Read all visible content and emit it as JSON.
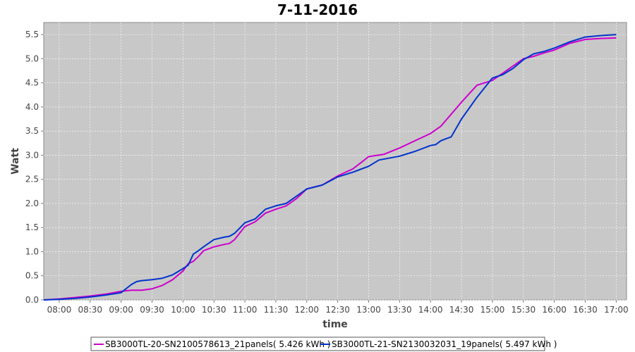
{
  "chart_data": {
    "type": "line",
    "title": "7-11-2016",
    "xlabel": "time",
    "ylabel": "Watt",
    "x_ticks": [
      "08:00",
      "08:30",
      "09:00",
      "09:30",
      "10:00",
      "10:30",
      "11:00",
      "11:30",
      "12:00",
      "12:30",
      "13:00",
      "13:30",
      "14:00",
      "14:30",
      "15:00",
      "15:30",
      "16:00",
      "16:30",
      "17:00"
    ],
    "y_ticks": [
      "0.0",
      "0.5",
      "1.0",
      "1.5",
      "2.0",
      "2.5",
      "3.0",
      "3.5",
      "4.0",
      "4.5",
      "5.0",
      "5.5"
    ],
    "xlim": [
      "07:45",
      "17:10"
    ],
    "ylim": [
      0,
      5.75
    ],
    "grid": true,
    "background": "#c8c8c8",
    "legend_position": "bottom",
    "series": [
      {
        "name": "SB3000TL-20-SN2100578613_21panels( 5.426 kWh )",
        "color": "#cc00cc",
        "x": [
          "07:45",
          "08:00",
          "08:15",
          "08:30",
          "08:45",
          "09:00",
          "09:10",
          "09:20",
          "09:30",
          "09:40",
          "09:50",
          "10:00",
          "10:05",
          "10:10",
          "10:15",
          "10:20",
          "10:30",
          "10:40",
          "10:45",
          "10:50",
          "11:00",
          "11:10",
          "11:20",
          "11:30",
          "11:40",
          "11:50",
          "12:00",
          "12:15",
          "12:30",
          "12:45",
          "13:00",
          "13:15",
          "13:30",
          "13:45",
          "14:00",
          "14:10",
          "14:20",
          "14:30",
          "14:45",
          "15:00",
          "15:10",
          "15:20",
          "15:30",
          "15:40",
          "15:50",
          "16:00",
          "16:15",
          "16:30",
          "16:45",
          "17:00"
        ],
        "y": [
          0.0,
          0.02,
          0.05,
          0.08,
          0.12,
          0.18,
          0.2,
          0.2,
          0.23,
          0.3,
          0.42,
          0.6,
          0.75,
          0.8,
          0.9,
          1.02,
          1.1,
          1.15,
          1.17,
          1.25,
          1.52,
          1.62,
          1.8,
          1.88,
          1.95,
          2.1,
          2.3,
          2.38,
          2.57,
          2.72,
          2.97,
          3.02,
          3.15,
          3.3,
          3.45,
          3.6,
          3.85,
          4.1,
          4.45,
          4.55,
          4.7,
          4.85,
          5.0,
          5.05,
          5.12,
          5.18,
          5.32,
          5.4,
          5.42,
          5.43
        ]
      },
      {
        "name": "SB3000TL-21-SN2130032031_19panels( 5.497 kWh )",
        "color": "#0033cc",
        "x": [
          "07:45",
          "08:00",
          "08:15",
          "08:30",
          "08:45",
          "09:00",
          "09:10",
          "09:15",
          "09:20",
          "09:30",
          "09:40",
          "09:50",
          "10:00",
          "10:05",
          "10:10",
          "10:15",
          "10:20",
          "10:30",
          "10:40",
          "10:45",
          "10:50",
          "11:00",
          "11:10",
          "11:20",
          "11:30",
          "11:40",
          "11:50",
          "12:00",
          "12:15",
          "12:30",
          "12:45",
          "13:00",
          "13:10",
          "13:30",
          "13:45",
          "14:00",
          "14:05",
          "14:10",
          "14:15",
          "14:20",
          "14:30",
          "14:45",
          "15:00",
          "15:10",
          "15:20",
          "15:30",
          "15:40",
          "15:50",
          "16:00",
          "16:15",
          "16:30",
          "16:45",
          "17:00"
        ],
        "y": [
          0.0,
          0.01,
          0.03,
          0.06,
          0.1,
          0.15,
          0.32,
          0.38,
          0.4,
          0.42,
          0.45,
          0.52,
          0.65,
          0.72,
          0.95,
          1.02,
          1.1,
          1.25,
          1.3,
          1.32,
          1.38,
          1.6,
          1.68,
          1.88,
          1.95,
          2.0,
          2.15,
          2.3,
          2.38,
          2.55,
          2.65,
          2.77,
          2.9,
          2.98,
          3.08,
          3.2,
          3.22,
          3.3,
          3.34,
          3.38,
          3.75,
          4.2,
          4.6,
          4.67,
          4.8,
          4.98,
          5.1,
          5.15,
          5.22,
          5.35,
          5.45,
          5.48,
          5.5
        ]
      }
    ]
  }
}
